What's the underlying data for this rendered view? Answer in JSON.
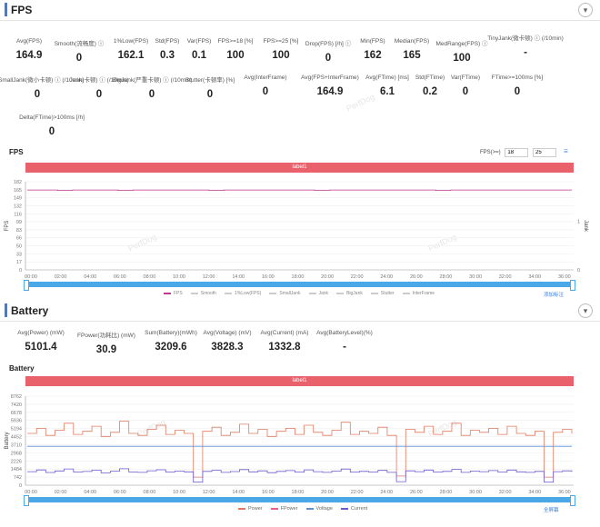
{
  "fps_section": {
    "title": "FPS",
    "metrics": [
      {
        "label": "Avg(FPS)",
        "value": "164.9"
      },
      {
        "label": "Smooth(流畅度) ⓘ",
        "value": "0"
      },
      {
        "label": "1%Low(FPS)",
        "value": "162.1"
      },
      {
        "label": "Std(FPS)",
        "value": "0.3"
      },
      {
        "label": "Var(FPS)",
        "value": "0.1"
      },
      {
        "label": "FPS>=18 [%]",
        "value": "100"
      },
      {
        "label": "FPS>=25 [%]",
        "value": "100"
      },
      {
        "label": "Drop(FPS) [/h] ⓘ",
        "value": "0"
      },
      {
        "label": "Min(FPS)",
        "value": "162"
      },
      {
        "label": "Median(FPS)",
        "value": "165"
      },
      {
        "label": "MedRange(FPS) ⓘ",
        "value": "100"
      },
      {
        "label": "TinyJank(微卡顿) ⓘ (/10min)",
        "value": "-"
      },
      {
        "label": "SmallJank(微小卡顿) ⓘ (/10min)",
        "value": "0"
      },
      {
        "label": "Jank(卡顿) ⓘ (/10min)",
        "value": "0"
      },
      {
        "label": "BigJank(严重卡顿) ⓘ (/10min)",
        "value": "0"
      },
      {
        "label": "Stutter(卡顿率) [%]",
        "value": "0"
      },
      {
        "label": "Avg(InterFrame)",
        "value": "0"
      },
      {
        "label": "Avg(FPS+InterFrame)",
        "value": "164.9"
      },
      {
        "label": "Avg(FTime) [ms]",
        "value": "6.1"
      },
      {
        "label": "Std(FTime)",
        "value": "0.2"
      },
      {
        "label": "Var(FTime)",
        "value": "0"
      },
      {
        "label": "FTime>=100ms [%]",
        "value": "0"
      },
      {
        "label": "Delta(FTime)>100ms [/h]",
        "value": "0"
      }
    ]
  },
  "battery_section": {
    "title": "Battery",
    "metrics": [
      {
        "label": "Avg(Power) (mW)",
        "value": "5101.4"
      },
      {
        "label": "FPower(功耗比) (mW)",
        "value": "30.9"
      },
      {
        "label": "Sum(Battery)(mWh)",
        "value": "3209.6"
      },
      {
        "label": "Avg(Voltage) (mV)",
        "value": "3828.3"
      },
      {
        "label": "Avg(Current) (mA)",
        "value": "1332.8"
      },
      {
        "label": "Avg(BatteryLevel)(%)",
        "value": "-"
      }
    ]
  },
  "watermark": "PerfDog",
  "fps_controls": {
    "label": "FPS(>=)",
    "v1": "18",
    "v2": "25"
  },
  "chart_data": [
    {
      "type": "line",
      "title": "FPS",
      "band_label": "label1",
      "ylabel": "FPS",
      "y2label": "Jank",
      "ylim": [
        0,
        182
      ],
      "yticks": [
        "182",
        "165",
        "149",
        "132",
        "116",
        "99",
        "83",
        "66",
        "50",
        "33",
        "17",
        "0"
      ],
      "y2ticks": [
        "1",
        "0"
      ],
      "xticks": [
        "00:00",
        "02:00",
        "04:00",
        "06:00",
        "08:00",
        "10:00",
        "12:00",
        "14:00",
        "16:00",
        "18:00",
        "20:00",
        "22:00",
        "24:00",
        "26:00",
        "28:00",
        "30:00",
        "32:00",
        "34:00",
        "36:00"
      ],
      "series": [
        {
          "name": "FPS",
          "color": "#c0398f",
          "values": [
            165,
            165,
            164,
            165,
            165,
            165,
            164,
            165,
            165,
            165,
            165,
            165,
            164,
            165,
            165,
            165,
            165,
            165,
            165,
            164,
            165,
            165,
            165,
            165,
            165,
            165,
            165,
            164,
            165,
            165,
            165,
            165,
            165,
            165,
            165,
            165,
            165
          ]
        }
      ],
      "legend": [
        "FPS",
        "Smooth",
        "1%Low(FPS)",
        "SmallJank",
        "Jank",
        "BigJank",
        "Stutter",
        "InterFrame"
      ],
      "legend_colors": [
        "#c0398f",
        "#cccccc",
        "#cccccc",
        "#cccccc",
        "#cccccc",
        "#cccccc",
        "#cccccc",
        "#cccccc"
      ],
      "side_link": "添加标注"
    },
    {
      "type": "line",
      "title": "Battery",
      "band_label": "label1",
      "ylabel": "Battery",
      "ylim": [
        0,
        8762
      ],
      "yticks": [
        "8762",
        "7420",
        "6678",
        "5936",
        "5194",
        "4452",
        "3710",
        "2968",
        "2226",
        "1484",
        "742",
        "0"
      ],
      "xticks": [
        "00:00",
        "02:00",
        "04:00",
        "06:00",
        "08:00",
        "10:00",
        "12:00",
        "14:00",
        "16:00",
        "18:00",
        "20:00",
        "22:00",
        "24:00",
        "26:00",
        "28:00",
        "30:00",
        "32:00",
        "34:00",
        "36:00"
      ],
      "series": [
        {
          "name": "Power",
          "color": "#e07a5f",
          "values": [
            5100,
            5600,
            4900,
            5400,
            6100,
            5000,
            5300,
            5800,
            4800,
            5200,
            6300,
            5100,
            4900,
            5500,
            5900,
            5000,
            5400,
            5100,
            800,
            5300,
            5700,
            4900,
            5200,
            6000,
            5100,
            5500,
            4800,
            5300,
            5600,
            5000,
            5900,
            5200,
            4900,
            5400,
            6200,
            5000,
            5300,
            5100,
            5700,
            4900,
            900,
            5500,
            5200,
            5800,
            5000,
            5300,
            6100,
            4900,
            5400,
            5200,
            5600,
            5000,
            5800,
            5100,
            4900,
            5300,
            800,
            5200,
            5500,
            5100
          ]
        },
        {
          "name": "FPower",
          "color": "#e85d8a",
          "values": []
        },
        {
          "name": "Voltage",
          "color": "#5b8fd6",
          "values": [
            3830,
            3830,
            3829,
            3829,
            3828,
            3828,
            3828,
            3828,
            3827,
            3827,
            3827,
            3827
          ]
        },
        {
          "name": "Current",
          "color": "#6a5acd",
          "values": [
            1330,
            1500,
            1250,
            1400,
            1600,
            1300,
            1350,
            1480,
            1220,
            1380,
            1620,
            1300,
            1260,
            1420,
            1520,
            1300,
            1380,
            1310,
            300,
            1360,
            1470,
            1260,
            1340,
            1540,
            1310,
            1410,
            1230,
            1360,
            1440,
            1290,
            1510,
            1330,
            1260,
            1390,
            1590,
            1290,
            1360,
            1300,
            1460,
            1260,
            350,
            1410,
            1330,
            1490,
            1290,
            1360,
            1560,
            1260,
            1390,
            1330,
            1440,
            1290,
            1490,
            1310,
            1260,
            1360,
            300,
            1330,
            1410,
            1310
          ]
        }
      ],
      "legend": [
        "Power",
        "FPower",
        "Voltage",
        "Current"
      ],
      "legend_colors": [
        "#e07a5f",
        "#e85d8a",
        "#5b8fd6",
        "#6a5acd"
      ],
      "side_link": "全屏幕"
    }
  ]
}
